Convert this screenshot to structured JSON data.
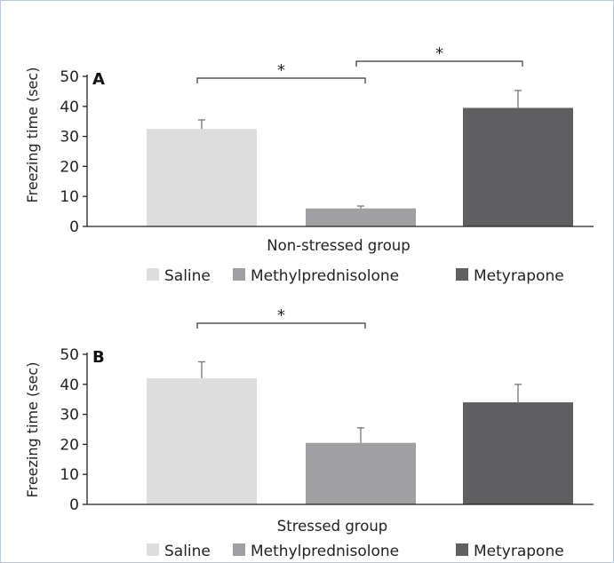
{
  "colors": {
    "saline": "#dddddd",
    "methylprednisolone": "#a0a0a2",
    "metyrapone": "#5f5f61",
    "axis": "#222222",
    "frame": "#b8c6de"
  },
  "legend": [
    "Saline",
    "Methylprednisolone",
    "Metyrapone"
  ],
  "chart_data": [
    {
      "type": "bar",
      "panel_label": "A",
      "xlabel": "Non-stressed group",
      "ylabel": "Freezing time (sec)",
      "ylim": [
        0,
        50
      ],
      "yticks": [
        0,
        10,
        20,
        30,
        40,
        50
      ],
      "categories": [
        "Saline",
        "Methylprednisolone",
        "Metyrapone"
      ],
      "values": [
        32.5,
        6.0,
        39.5
      ],
      "errors": [
        3.0,
        0.8,
        5.8
      ],
      "significance": [
        {
          "from": 0,
          "to": 1,
          "label": "*"
        },
        {
          "from": 1,
          "to": 2,
          "label": "*"
        }
      ]
    },
    {
      "type": "bar",
      "panel_label": "B",
      "xlabel": "Stressed group",
      "ylabel": "Freezing time (sec)",
      "ylim": [
        0,
        50
      ],
      "yticks": [
        0,
        10,
        20,
        30,
        40,
        50
      ],
      "categories": [
        "Saline",
        "Methylprednisolone",
        "Metyrapone"
      ],
      "values": [
        42.0,
        20.5,
        34.0
      ],
      "errors": [
        5.5,
        5.0,
        6.0
      ],
      "significance": [
        {
          "from": 0,
          "to": 1,
          "label": "*"
        }
      ]
    }
  ]
}
